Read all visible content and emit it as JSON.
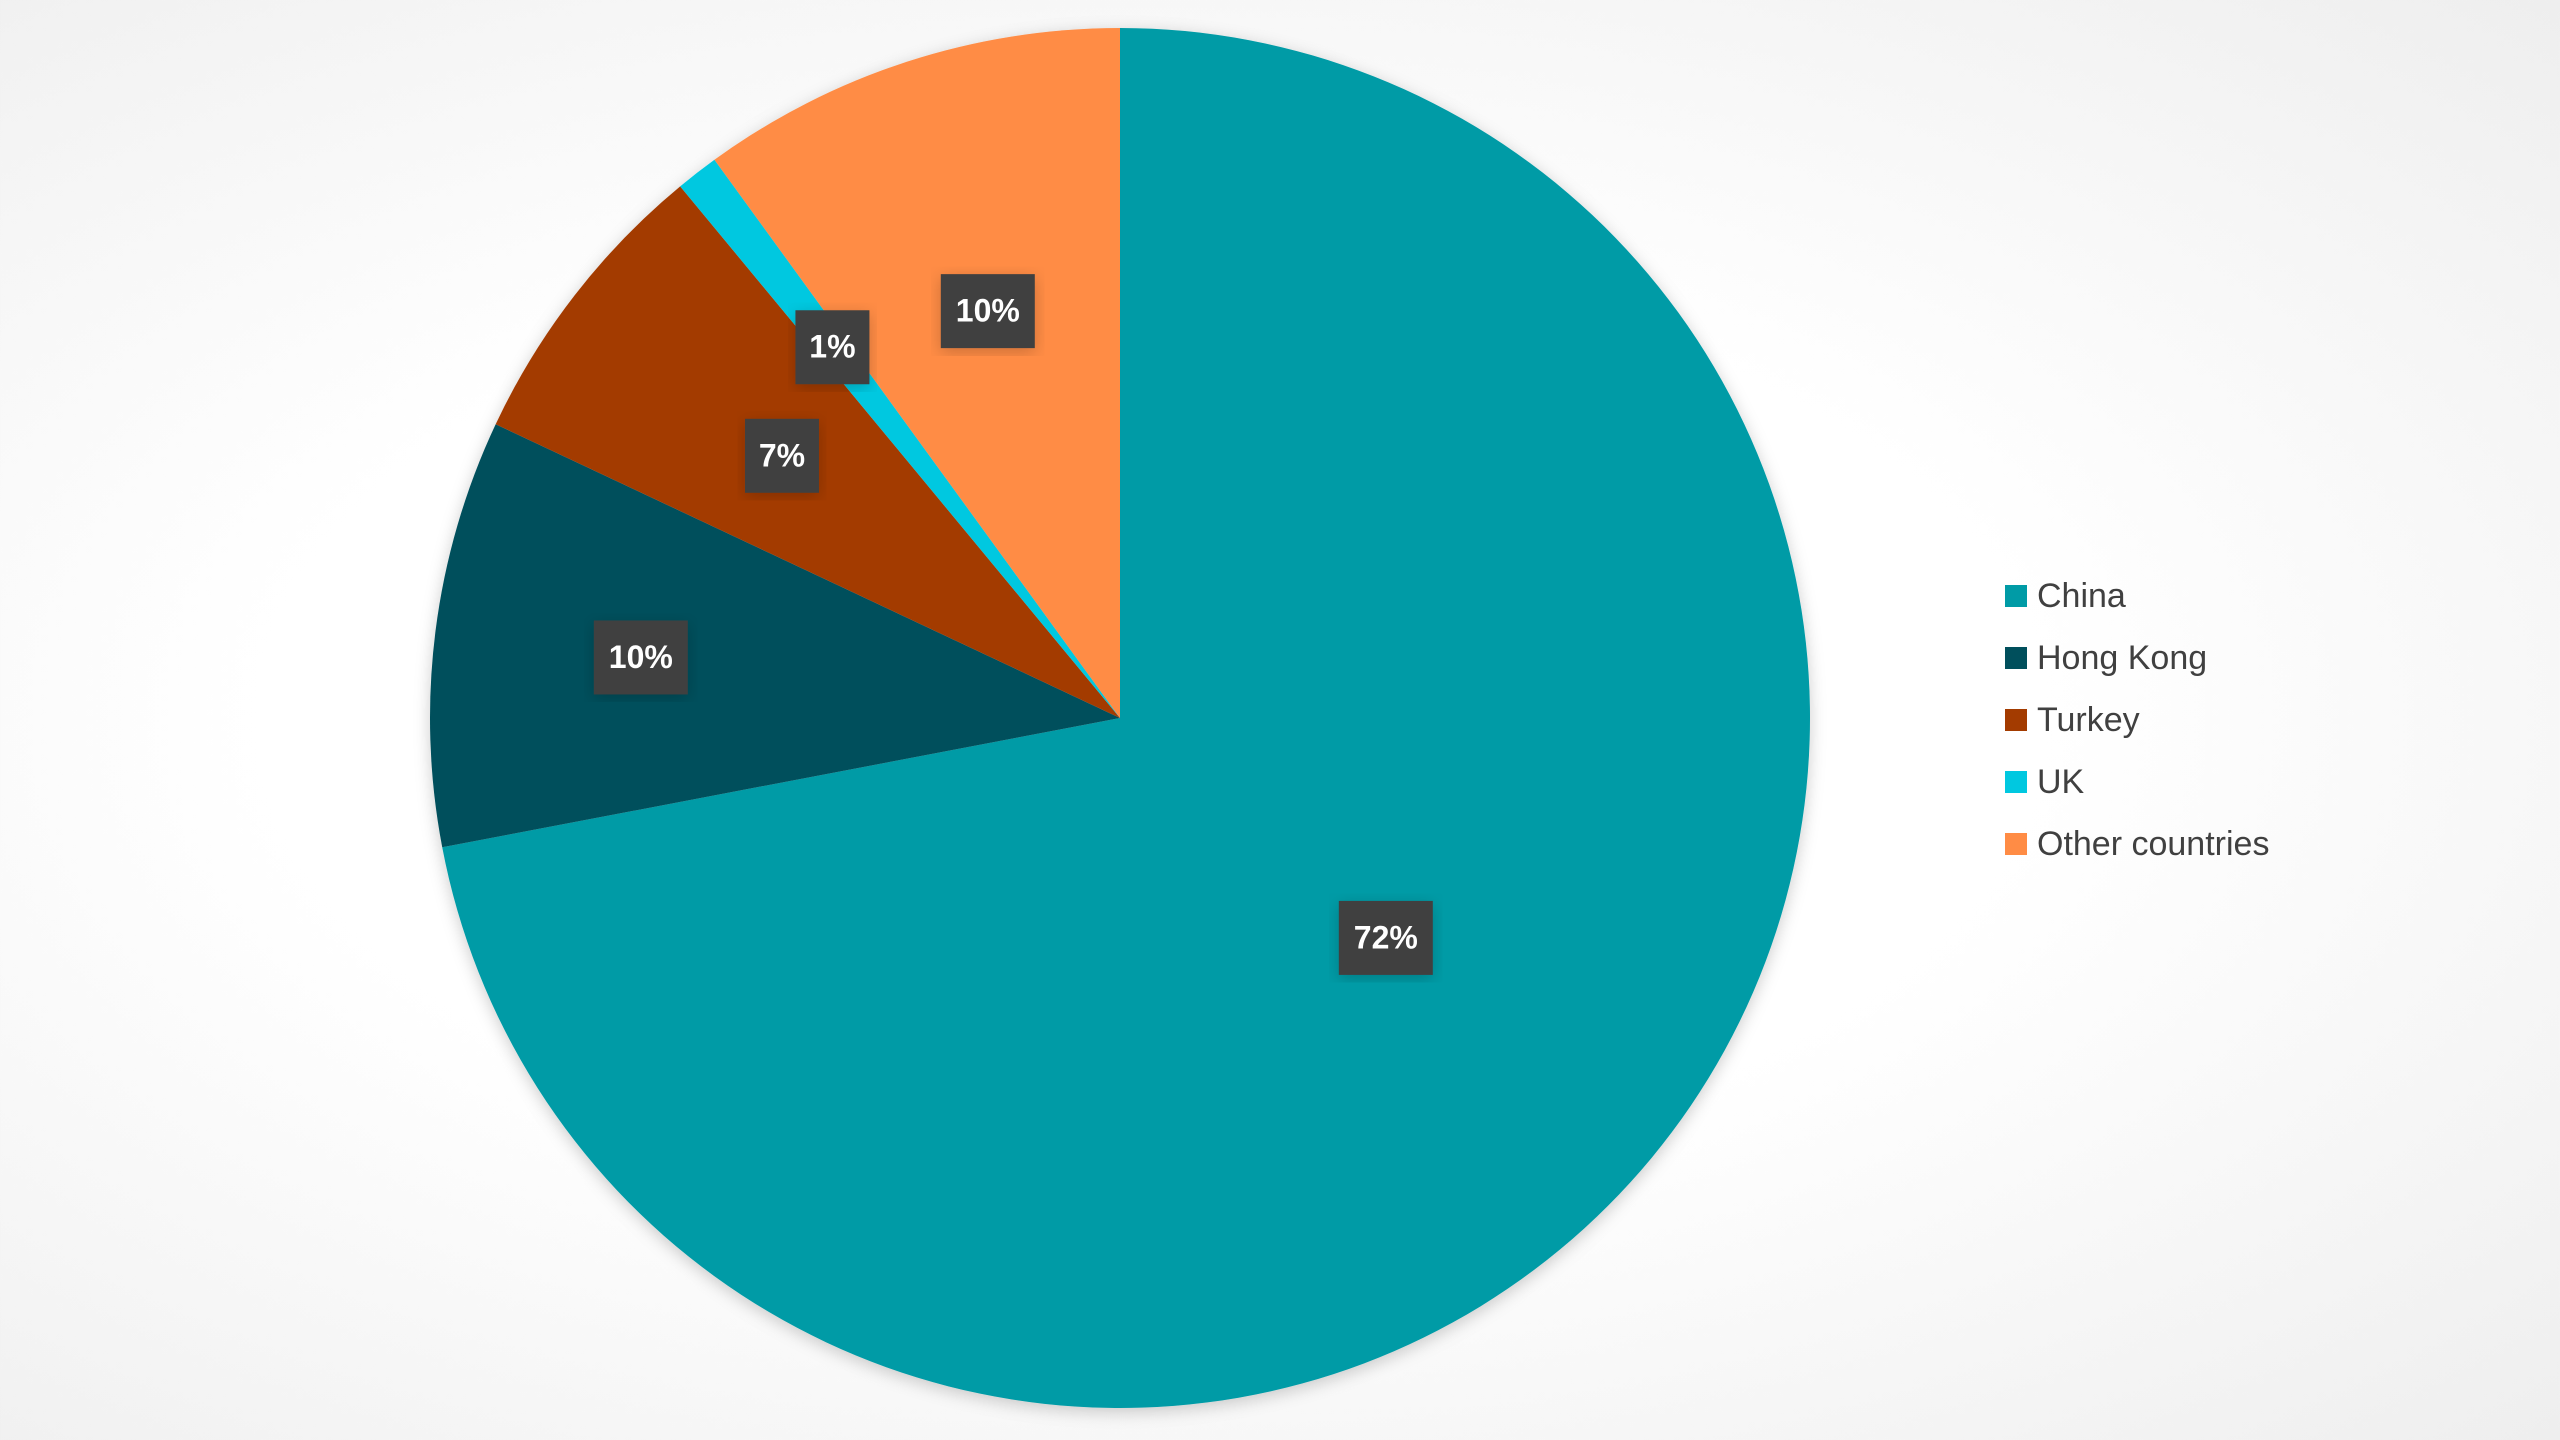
{
  "chart_data": {
    "type": "pie",
    "categories": [
      "China",
      "Hong Kong",
      "Turkey",
      "UK",
      "Other countries"
    ],
    "values": [
      72,
      10,
      7,
      1,
      10
    ],
    "value_labels": [
      "72%",
      "10%",
      "7%",
      "1%",
      "10%"
    ],
    "colors": [
      "#009ba6",
      "#004f5c",
      "#a33b00",
      "#00c8e0",
      "#ff8c45"
    ],
    "legend": "right"
  }
}
